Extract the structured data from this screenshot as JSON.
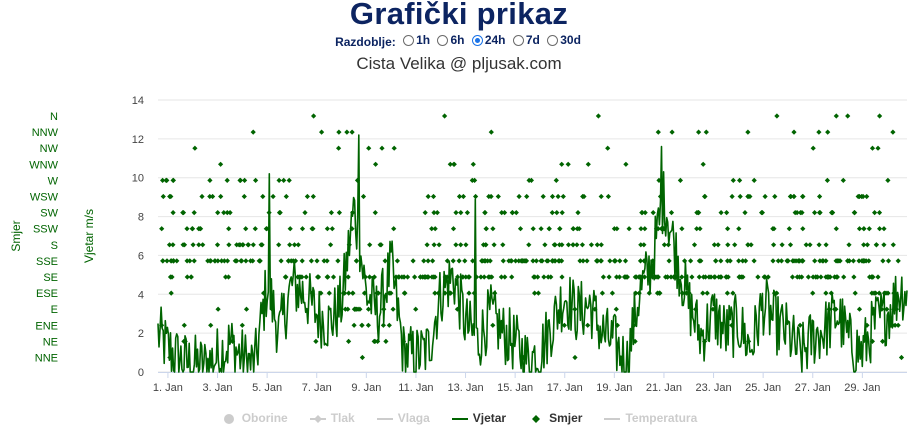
{
  "title": "Grafički prikaz",
  "period": {
    "label": "Razdoblje:",
    "options": [
      "1h",
      "6h",
      "24h",
      "7d",
      "30d"
    ],
    "selected": "24h"
  },
  "subtitle": "Cista Velika @ pljusak.com",
  "colors": {
    "wind": "#006400",
    "direction": "#006400",
    "hidden": "#cccccc",
    "grid": "#e6e6e6"
  },
  "legend": [
    {
      "name": "Oborine",
      "active": false,
      "icon": "circle-icon"
    },
    {
      "name": "Tlak",
      "active": false,
      "icon": "diamond-line-icon"
    },
    {
      "name": "Vlaga",
      "active": false,
      "icon": "line-icon"
    },
    {
      "name": "Vjetar",
      "active": true,
      "icon": "line-icon"
    },
    {
      "name": "Smjer",
      "active": true,
      "icon": "diamond-icon"
    },
    {
      "name": "Temperatura",
      "active": false,
      "icon": "line-icon"
    }
  ],
  "chart_data": {
    "type": "line",
    "xlabel": "",
    "x_range": [
      0.6,
      30.8
    ],
    "x_ticks": [
      1,
      3,
      5,
      7,
      9,
      11,
      13,
      15,
      17,
      19,
      21,
      23,
      25,
      27,
      29
    ],
    "x_tick_labels": [
      "1. Jan",
      "3. Jan",
      "5. Jan",
      "7. Jan",
      "9. Jan",
      "11. Jan",
      "13. Jan",
      "15. Jan",
      "17. Jan",
      "19. Jan",
      "21. Jan",
      "23. Jan",
      "25. Jan",
      "27. Jan",
      "29. Jan"
    ],
    "y_axis": {
      "label": "Vjetar m/s",
      "ylim": [
        0,
        14
      ],
      "ticks": [
        0,
        2,
        4,
        6,
        8,
        10,
        12,
        14
      ]
    },
    "direction_axis": {
      "label": "Smjer",
      "categories": [
        "N",
        "NNW",
        "NW",
        "WNW",
        "W",
        "WSW",
        "SW",
        "SSW",
        "S",
        "SSE",
        "SE",
        "ESE",
        "E",
        "ENE",
        "NE",
        "NNE"
      ]
    },
    "grid": true,
    "legend_position": "bottom",
    "wind_profile": {
      "x": [
        0.6,
        1.0,
        1.5,
        2.0,
        2.5,
        3.0,
        3.5,
        4.0,
        4.5,
        5.0,
        5.5,
        6.0,
        6.5,
        7.0,
        7.5,
        8.0,
        8.5,
        9.0,
        9.5,
        10.0,
        10.5,
        11.0,
        11.5,
        12.0,
        12.5,
        13.0,
        13.5,
        14.0,
        14.5,
        15.0,
        15.5,
        16.0,
        16.5,
        17.0,
        17.5,
        18.0,
        18.5,
        19.0,
        19.5,
        20.0,
        20.5,
        21.0,
        21.5,
        22.0,
        22.5,
        23.0,
        23.5,
        24.0,
        24.5,
        25.0,
        25.5,
        26.0,
        26.5,
        27.0,
        27.5,
        28.0,
        28.5,
        29.0,
        29.5,
        30.0,
        30.5
      ],
      "y": [
        2.0,
        1.2,
        0.6,
        0.4,
        0.3,
        0.8,
        1.5,
        0.7,
        0.3,
        4.5,
        2.0,
        4.5,
        4.0,
        3.0,
        2.5,
        3.5,
        8.5,
        4.0,
        3.0,
        5.5,
        1.0,
        0.8,
        1.2,
        4.0,
        5.0,
        2.5,
        1.5,
        3.0,
        2.0,
        1.5,
        0.6,
        1.0,
        2.5,
        4.0,
        3.0,
        3.5,
        2.0,
        1.5,
        0.4,
        4.0,
        5.5,
        9.0,
        6.0,
        3.5,
        1.8,
        3.0,
        2.0,
        2.5,
        1.2,
        3.5,
        2.5,
        2.0,
        0.8,
        1.8,
        2.2,
        3.0,
        1.5,
        1.0,
        2.5,
        3.0,
        4.2
      ]
    },
    "wind_peaks": {
      "x": [
        5.1,
        8.7,
        13.4,
        20.9
      ],
      "y": [
        10.2,
        12.2,
        8.9,
        11.6
      ]
    },
    "direction_profile": {
      "x": [
        0.6,
        2.0,
        3.5,
        5.0,
        6.5,
        8.0,
        9.5,
        11.0,
        12.5,
        14.0,
        15.5,
        17.0,
        18.5,
        20.0,
        21.5,
        23.0,
        24.5,
        26.0,
        27.5,
        29.0,
        30.5
      ],
      "dominant": [
        "SSE",
        "SSE",
        "SSE",
        "S",
        "SE",
        "ESE",
        "ENE",
        "SSE",
        "ESE",
        "SSE",
        "SSE",
        "SSE",
        "SSE",
        "SE",
        "SE",
        "SE",
        "SSE",
        "SSE",
        "SE",
        "SSE",
        "ENE"
      ]
    }
  }
}
